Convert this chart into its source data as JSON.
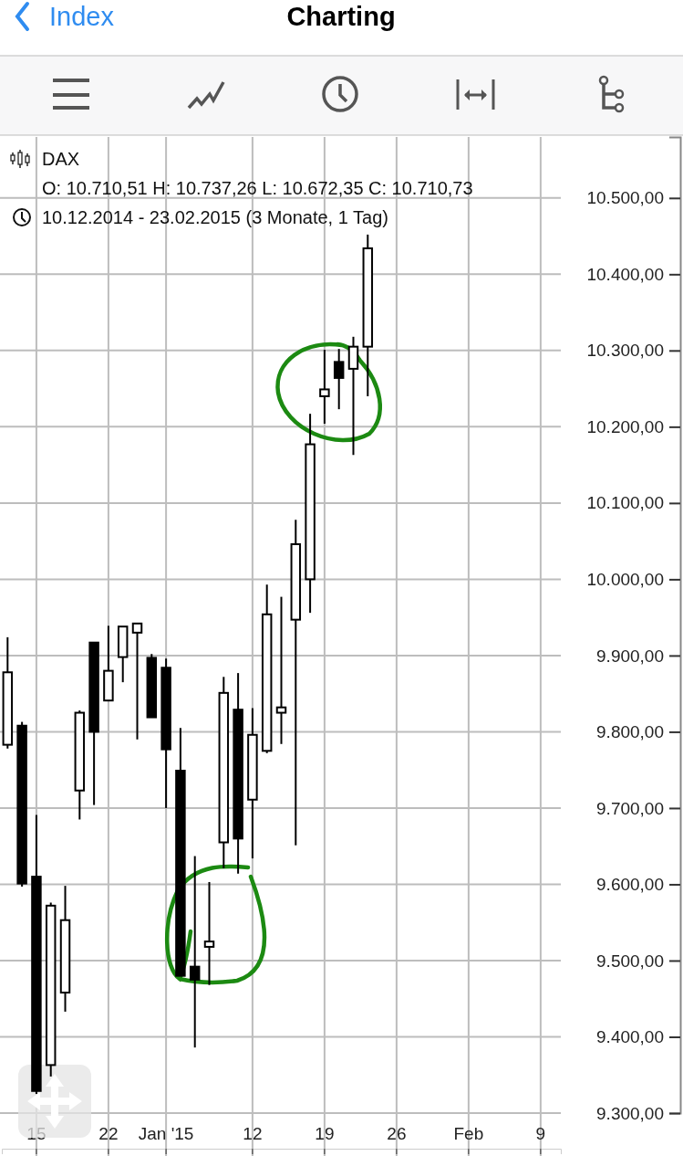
{
  "chart_data": {
    "type": "candlestick",
    "title": "Charting",
    "annotations": [
      "Index",
      "DAX",
      "O: 10.710,51  H: 10.737,26  L: 10.672,35  C: 10.710,73",
      "10.12.2014 - 23.02.2015 (3 Monate, 1 Tag)"
    ],
    "categories": [
      null,
      null,
      "15",
      null,
      null,
      null,
      null,
      "22",
      null,
      null,
      null,
      "Jan '15",
      null,
      null,
      null,
      null,
      null,
      "12",
      null,
      null,
      null,
      null,
      "19",
      null,
      null,
      null,
      null,
      "26",
      null,
      null,
      null,
      null,
      "Feb",
      null,
      null,
      null,
      null,
      "9",
      null
    ],
    "ohlc": [
      [
        9783,
        9924,
        9778,
        9878
      ],
      [
        9808,
        9813,
        9597,
        9601
      ],
      [
        9610,
        9691,
        9325,
        9329
      ],
      [
        9363,
        9576,
        9348,
        9572
      ],
      [
        9458,
        9598,
        9433,
        9553
      ],
      [
        9723,
        9828,
        9685,
        9825
      ],
      [
        9917,
        9917,
        9704,
        9800
      ],
      [
        9841,
        9939,
        9841,
        9880
      ],
      [
        9898,
        9938,
        9865,
        9938
      ],
      [
        9930,
        9942,
        9790,
        9942
      ],
      [
        9897,
        9902,
        9819,
        9819
      ],
      [
        9884,
        9896,
        9700,
        9777
      ],
      [
        9749,
        9805,
        9480,
        9480
      ],
      [
        9492,
        9637,
        9386,
        9475
      ],
      [
        9518,
        9603,
        9468,
        9525
      ],
      [
        9655,
        9872,
        9621,
        9851
      ],
      [
        9829,
        9877,
        9614,
        9660
      ],
      [
        9711,
        9831,
        9634,
        9796
      ],
      [
        9775,
        9993,
        9772,
        9954
      ],
      [
        9825,
        9977,
        9784,
        9832
      ],
      [
        9947,
        10078,
        9651,
        10046
      ],
      [
        10000,
        10217,
        9956,
        10177
      ],
      [
        10240,
        10301,
        10204,
        10249
      ],
      [
        10285,
        10302,
        10223,
        10264
      ],
      [
        10276,
        10318,
        10163,
        10305
      ],
      [
        10305,
        10452,
        10240,
        10434
      ],
      null,
      null,
      null,
      null,
      null,
      null,
      null,
      null,
      null,
      null,
      null,
      null,
      null
    ],
    "ylim": [
      9300,
      10580
    ],
    "yticks": [
      {
        "value": 9300,
        "label": "9.300,00"
      },
      {
        "value": 9400,
        "label": "9.400,00"
      },
      {
        "value": 9500,
        "label": "9.500,00"
      },
      {
        "value": 9600,
        "label": "9.600,00"
      },
      {
        "value": 9700,
        "label": "9.700,00"
      },
      {
        "value": 9800,
        "label": "9.800,00"
      },
      {
        "value": 9900,
        "label": "9.900,00"
      },
      {
        "value": 10000,
        "label": "10.000,00"
      },
      {
        "value": 10100,
        "label": "10.100,00"
      },
      {
        "value": 10200,
        "label": "10.200,00"
      },
      {
        "value": 10300,
        "label": "10.300,00"
      },
      {
        "value": 10400,
        "label": "10.400,00"
      },
      {
        "value": 10500,
        "label": "10.500,00"
      }
    ],
    "grid": true
  }
}
